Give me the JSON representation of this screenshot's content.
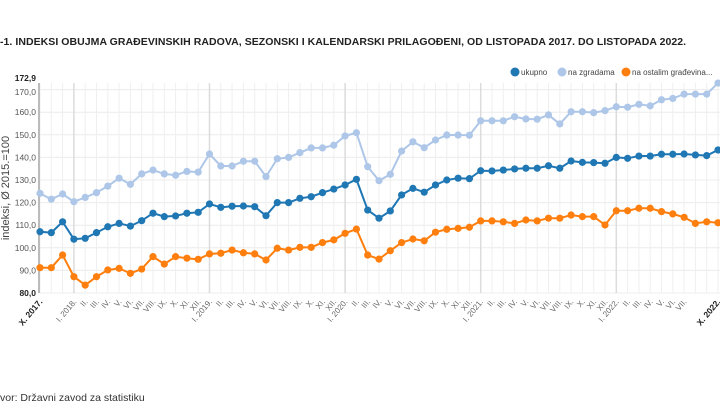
{
  "title": "-1. INDEKSI OBUJMA GRAĐEVINSKIH RADOVA, SEZONSKI I KALENDARSKI PRILAGOĐENI, OD LISTOPADA 2017. DO LISTOPADA 2022.",
  "source": "vor: Državni zavod za statistiku",
  "chart_data": {
    "type": "line",
    "title": "-1. INDEKSI OBUJMA GRAĐEVINSKIH RADOVA, SEZONSKI I KALENDARSKI PRILAGOĐENI, OD LISTOPADA 2017. DO LISTOPADA 2022.",
    "ylabel": "indeksi, Ø 2015.=100",
    "xlabel": "",
    "ylim": [
      80,
      172.9
    ],
    "yticks": [
      "80,0",
      "90,0",
      "100,0",
      "110,0",
      "120,0",
      "130,0",
      "140,0",
      "150,0",
      "160,0",
      "170,0",
      "172,9"
    ],
    "grid": true,
    "legend_position": "top-right",
    "categories": [
      "X. 2017.",
      "",
      "",
      "I. 2018.",
      "II.",
      "III.",
      "IV.",
      "V.",
      "VI.",
      "VII.",
      "VIII.",
      "IX.",
      "X.",
      "XI.",
      "XII.",
      "I. 2019.",
      "II.",
      "III.",
      "IV.",
      "V.",
      "VI.",
      "VII.",
      "VIII.",
      "IX.",
      "X.",
      "XI.",
      "XII.",
      "I. 2020.",
      "II.",
      "III.",
      "IV.",
      "V.",
      "VI.",
      "VII.",
      "VIII.",
      "IX.",
      "X.",
      "XI.",
      "XII.",
      "I. 2021.",
      "II.",
      "III.",
      "IV.",
      "V.",
      "VI.",
      "VII.",
      "VIII.",
      "IX.",
      "X.",
      "XI.",
      "XII.",
      "I. 2022.",
      "II.",
      "III.",
      "IV.",
      "V.",
      "VI.",
      "VII.",
      "",
      "",
      "X. 2022."
    ],
    "series": [
      {
        "name": "ukupno",
        "color": "#1f77b4",
        "values": [
          107.1,
          106.7,
          111.5,
          103.8,
          104.2,
          106.7,
          109.3,
          110.8,
          109.6,
          112.0,
          115.3,
          113.8,
          114.1,
          115.3,
          115.7,
          119.4,
          117.9,
          118.4,
          118.5,
          118.2,
          114.2,
          120.0,
          120.0,
          121.9,
          122.6,
          124.4,
          126.0,
          127.8,
          130.3,
          116.7,
          113.1,
          116.3,
          123.4,
          126.3,
          124.6,
          127.8,
          130.0,
          130.8,
          130.6,
          134.1,
          134.0,
          134.4,
          134.9,
          135.2,
          135.2,
          136.3,
          135.2,
          138.4,
          137.8,
          137.7,
          137.4,
          140.0,
          139.6,
          140.6,
          140.6,
          141.4,
          141.4,
          141.5,
          141.1,
          140.8,
          143.3
        ]
      },
      {
        "name": "na zgradama",
        "color": "#aec7e8",
        "values": [
          124.1,
          121.5,
          123.8,
          120.4,
          122.3,
          124.4,
          127.3,
          130.8,
          128.1,
          132.7,
          134.4,
          132.7,
          132.1,
          133.8,
          133.5,
          141.5,
          136.2,
          136.2,
          138.3,
          138.3,
          131.5,
          139.4,
          140.0,
          142.1,
          144.2,
          144.2,
          145.4,
          149.5,
          150.9,
          135.9,
          129.7,
          132.5,
          142.8,
          146.9,
          144.3,
          147.7,
          149.9,
          149.9,
          149.8,
          156.2,
          156.2,
          156.2,
          158.0,
          157.0,
          156.9,
          158.8,
          154.8,
          160.2,
          160.2,
          159.8,
          160.7,
          162.4,
          162.2,
          163.5,
          162.8,
          165.5,
          166.1,
          168.0,
          168.0,
          168.0,
          172.9
        ]
      },
      {
        "name": "na ostalim građevina...",
        "color": "#ff7f0e",
        "values": [
          91.2,
          91.2,
          96.8,
          87.2,
          83.5,
          87.2,
          90.2,
          90.9,
          88.7,
          90.6,
          96.1,
          92.8,
          96.1,
          95.4,
          94.9,
          97.3,
          97.6,
          99.0,
          97.8,
          97.3,
          94.6,
          99.8,
          99.0,
          100.2,
          100.2,
          102.3,
          103.5,
          106.4,
          108.3,
          96.8,
          95.0,
          98.7,
          102.3,
          103.9,
          103.1,
          106.9,
          108.2,
          108.6,
          109.1,
          111.9,
          111.9,
          111.5,
          110.8,
          112.3,
          111.9,
          113.1,
          113.1,
          114.5,
          113.8,
          113.8,
          110.1,
          116.4,
          116.4,
          117.5,
          117.5,
          116.0,
          115.0,
          113.5,
          110.8,
          111.5,
          111.1
        ]
      }
    ]
  }
}
